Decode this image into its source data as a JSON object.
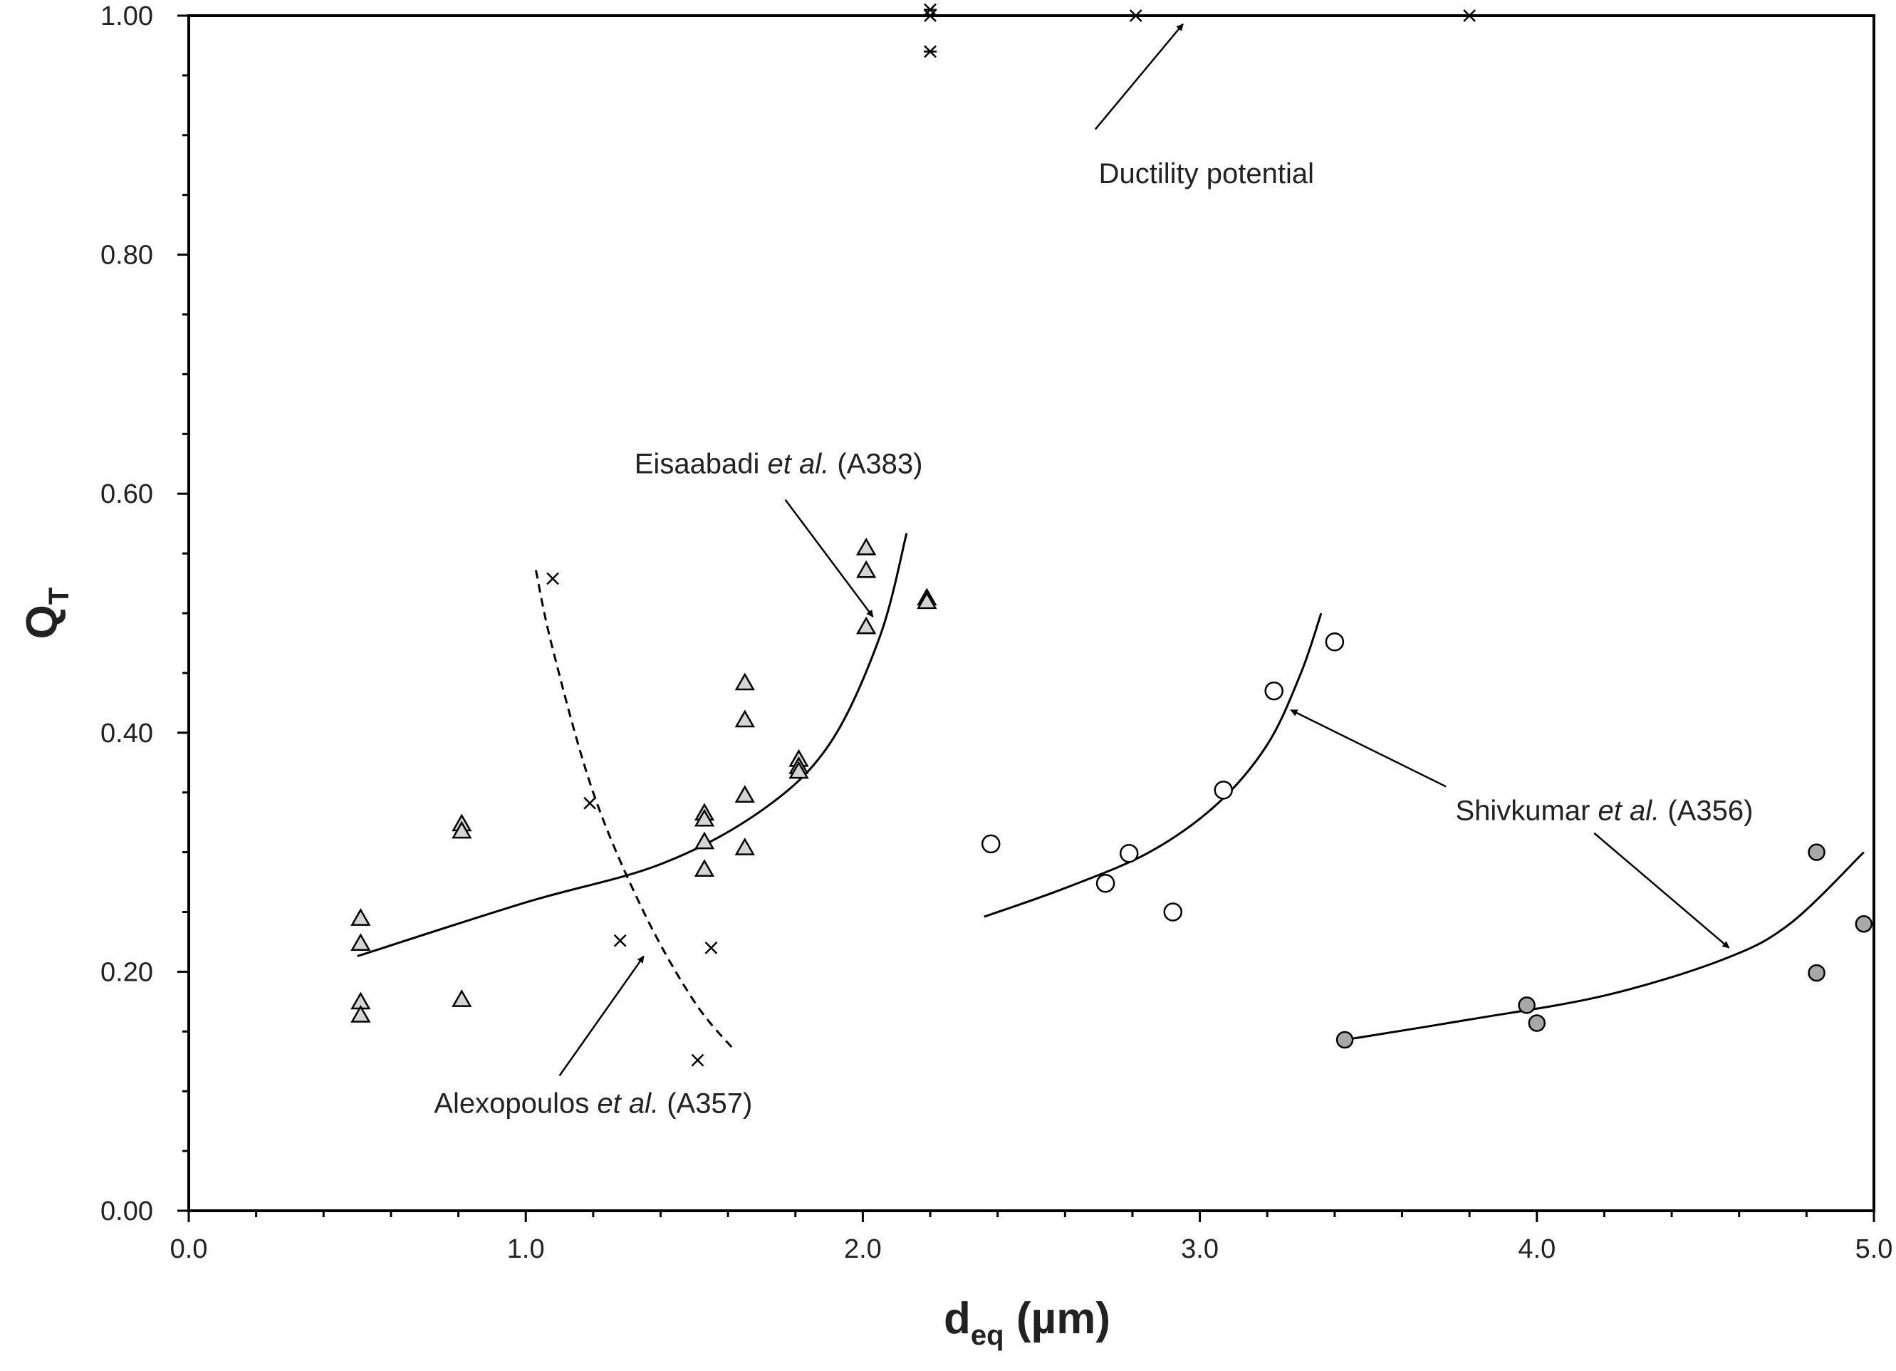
{
  "chart_data": {
    "type": "scatter",
    "title": "",
    "xlabel": {
      "main": "d",
      "sub": "eq",
      "unit": " (µm)"
    },
    "ylabel": {
      "main": "Q",
      "sub": "T"
    },
    "xlim": [
      0,
      5
    ],
    "ylim": [
      0,
      1.0
    ],
    "x_ticks": [
      0,
      1,
      2,
      3,
      4,
      5
    ],
    "x_tick_labels": [
      "0.0",
      "1.0",
      "2.0",
      "3.0",
      "4.0",
      "5.0"
    ],
    "x_minor_step": 0.2,
    "y_ticks": [
      0,
      0.2,
      0.4,
      0.6,
      0.8,
      1.0
    ],
    "y_tick_labels": [
      "0.00",
      "0.20",
      "0.40",
      "0.60",
      "0.80",
      "1.00"
    ],
    "y_minor_step": 0.05,
    "grid": false,
    "reference_line": {
      "y": 1.0,
      "style": "dashed"
    },
    "series": [
      {
        "name": "Eisaabadi et al. (A383)",
        "marker": "triangle",
        "points": [
          [
            0.51,
            0.244
          ],
          [
            0.51,
            0.223
          ],
          [
            0.51,
            0.174
          ],
          [
            0.51,
            0.163
          ],
          [
            0.81,
            0.323
          ],
          [
            0.81,
            0.317
          ],
          [
            0.81,
            0.176
          ],
          [
            1.53,
            0.332
          ],
          [
            1.53,
            0.327
          ],
          [
            1.53,
            0.308
          ],
          [
            1.53,
            0.285
          ],
          [
            1.65,
            0.441
          ],
          [
            1.65,
            0.41
          ],
          [
            1.65,
            0.347
          ],
          [
            1.65,
            0.303
          ],
          [
            1.81,
            0.377
          ],
          [
            1.81,
            0.371
          ],
          [
            1.81,
            0.367
          ],
          [
            2.01,
            0.554
          ],
          [
            2.01,
            0.535
          ],
          [
            2.01,
            0.488
          ],
          [
            2.19,
            0.512
          ],
          [
            2.19,
            0.509
          ]
        ],
        "trend": {
          "style": "solid",
          "points": [
            [
              0.5,
              0.213
            ],
            [
              1.0,
              0.258
            ],
            [
              1.4,
              0.29
            ],
            [
              1.7,
              0.335
            ],
            [
              1.9,
              0.39
            ],
            [
              2.05,
              0.48
            ],
            [
              2.13,
              0.567
            ]
          ]
        }
      },
      {
        "name": "Alexopoulos et al. (A357)",
        "marker": "x",
        "points": [
          [
            1.08,
            0.529
          ],
          [
            1.19,
            0.341
          ],
          [
            1.28,
            0.226
          ],
          [
            1.51,
            0.126
          ],
          [
            1.55,
            0.22
          ]
        ],
        "trend": {
          "style": "dashed",
          "points": [
            [
              1.03,
              0.536
            ],
            [
              1.08,
              0.47
            ],
            [
              1.2,
              0.35
            ],
            [
              1.35,
              0.25
            ],
            [
              1.5,
              0.175
            ],
            [
              1.62,
              0.134
            ]
          ]
        }
      },
      {
        "name": "Shivkumar et al. (A356)",
        "marker": "circle-open",
        "points": [
          [
            2.38,
            0.307
          ],
          [
            2.72,
            0.274
          ],
          [
            2.79,
            0.299
          ],
          [
            2.92,
            0.25
          ],
          [
            3.07,
            0.352
          ],
          [
            3.22,
            0.435
          ],
          [
            3.4,
            0.476
          ]
        ],
        "trend": {
          "style": "solid",
          "points": [
            [
              2.36,
              0.246
            ],
            [
              2.6,
              0.27
            ],
            [
              2.85,
              0.3
            ],
            [
              3.05,
              0.34
            ],
            [
              3.2,
              0.39
            ],
            [
              3.3,
              0.45
            ],
            [
              3.36,
              0.5
            ]
          ]
        }
      },
      {
        "name": "Shivkumar et al. (A356)",
        "marker": "circle-filled",
        "points": [
          [
            3.43,
            0.143
          ],
          [
            3.97,
            0.172
          ],
          [
            4.0,
            0.157
          ],
          [
            4.83,
            0.3
          ],
          [
            4.83,
            0.199
          ],
          [
            4.97,
            0.24
          ]
        ],
        "trend": {
          "style": "solid",
          "points": [
            [
              3.43,
              0.143
            ],
            [
              3.8,
              0.16
            ],
            [
              4.2,
              0.18
            ],
            [
              4.55,
              0.21
            ],
            [
              4.75,
              0.24
            ],
            [
              4.97,
              0.3
            ]
          ]
        }
      },
      {
        "name": "Ductility potential",
        "marker": "asterisk",
        "points": [
          [
            2.2,
            1.005
          ],
          [
            2.2,
            1.0
          ],
          [
            2.2,
            0.97
          ],
          [
            2.81,
            1.0
          ],
          [
            3.8,
            1.0
          ]
        ],
        "trend": {
          "style": "solid",
          "points": [
            [
              2.2,
              1.0
            ],
            [
              3.8,
              1.0
            ]
          ]
        }
      }
    ],
    "annotations": [
      {
        "parts": [
          {
            "text": "Eisaabadi "
          },
          {
            "text": "et al.",
            "italic": true
          },
          {
            "text": " (A383)"
          }
        ],
        "anchor": [
          1.75,
          0.617
        ],
        "align": "middle",
        "arrow_from": [
          1.77,
          0.595
        ],
        "arrow_to": [
          2.03,
          0.497
        ]
      },
      {
        "parts": [
          {
            "text": "Alexopoulos "
          },
          {
            "text": "et al.",
            "italic": true
          },
          {
            "text": " (A357)"
          }
        ],
        "anchor": [
          1.2,
          0.082
        ],
        "align": "middle",
        "arrow_from": [
          1.1,
          0.113
        ],
        "arrow_to": [
          1.35,
          0.213
        ]
      },
      {
        "parts": [
          {
            "text": "Shivkumar "
          },
          {
            "text": "et al.",
            "italic": true
          },
          {
            "text": " (A356)"
          }
        ],
        "anchor": [
          4.2,
          0.327
        ],
        "align": "middle",
        "arrow_from": [
          3.73,
          0.355
        ],
        "arrow_to": [
          3.27,
          0.419
        ]
      },
      {
        "parts": [],
        "arrow_from": [
          4.17,
          0.316
        ],
        "arrow_to": [
          4.57,
          0.22
        ]
      },
      {
        "parts": [
          {
            "text": "Ductility potential"
          }
        ],
        "anchor": [
          2.7,
          0.86
        ],
        "align": "start",
        "arrow_from": [
          2.69,
          0.905
        ],
        "arrow_to": [
          2.95,
          0.993
        ]
      }
    ]
  }
}
